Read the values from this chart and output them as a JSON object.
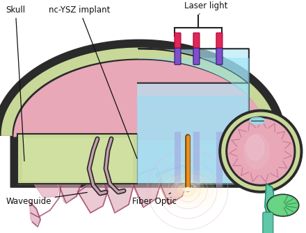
{
  "bg_color": "#ffffff",
  "skull_bone_color": "#c8d898",
  "skull_outline": "#2a2a2a",
  "brain_pink": "#e8a8b8",
  "brain_mid": "#d080a0",
  "brain_dark_fold": "#b86080",
  "implant_teal": "#b0e8f8",
  "implant_teal2": "#90d8f0",
  "laser_red": "#e02858",
  "laser_purple": "#8050c8",
  "fiber_orange": "#e89020",
  "glow_white": "#fff8e8",
  "cerebellum_green": "#58c878",
  "brainstem_teal": "#60c8a8",
  "labels": [
    "Skull",
    "nc-YSZ implant",
    "Laser light",
    "Waveguide",
    "Fiber Optic"
  ]
}
